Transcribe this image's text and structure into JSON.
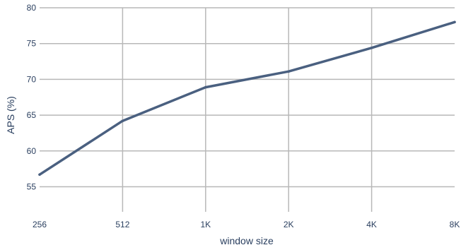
{
  "chart_data": {
    "type": "line",
    "categories": [
      "256",
      "512",
      "1K",
      "2K",
      "4K",
      "8K"
    ],
    "x": [
      256,
      512,
      1024,
      2048,
      4096,
      8192
    ],
    "x_scale": "log2",
    "xlabel": "window size",
    "ylabel": "APS (%)",
    "ylim": [
      51.5,
      80
    ],
    "yticks": [
      55,
      60,
      65,
      70,
      75,
      80
    ],
    "grid": true,
    "series": [
      {
        "values": [
          56.7,
          64.2,
          68.9,
          71.1,
          74.4,
          78.0
        ],
        "color": "#4a6080"
      }
    ]
  }
}
